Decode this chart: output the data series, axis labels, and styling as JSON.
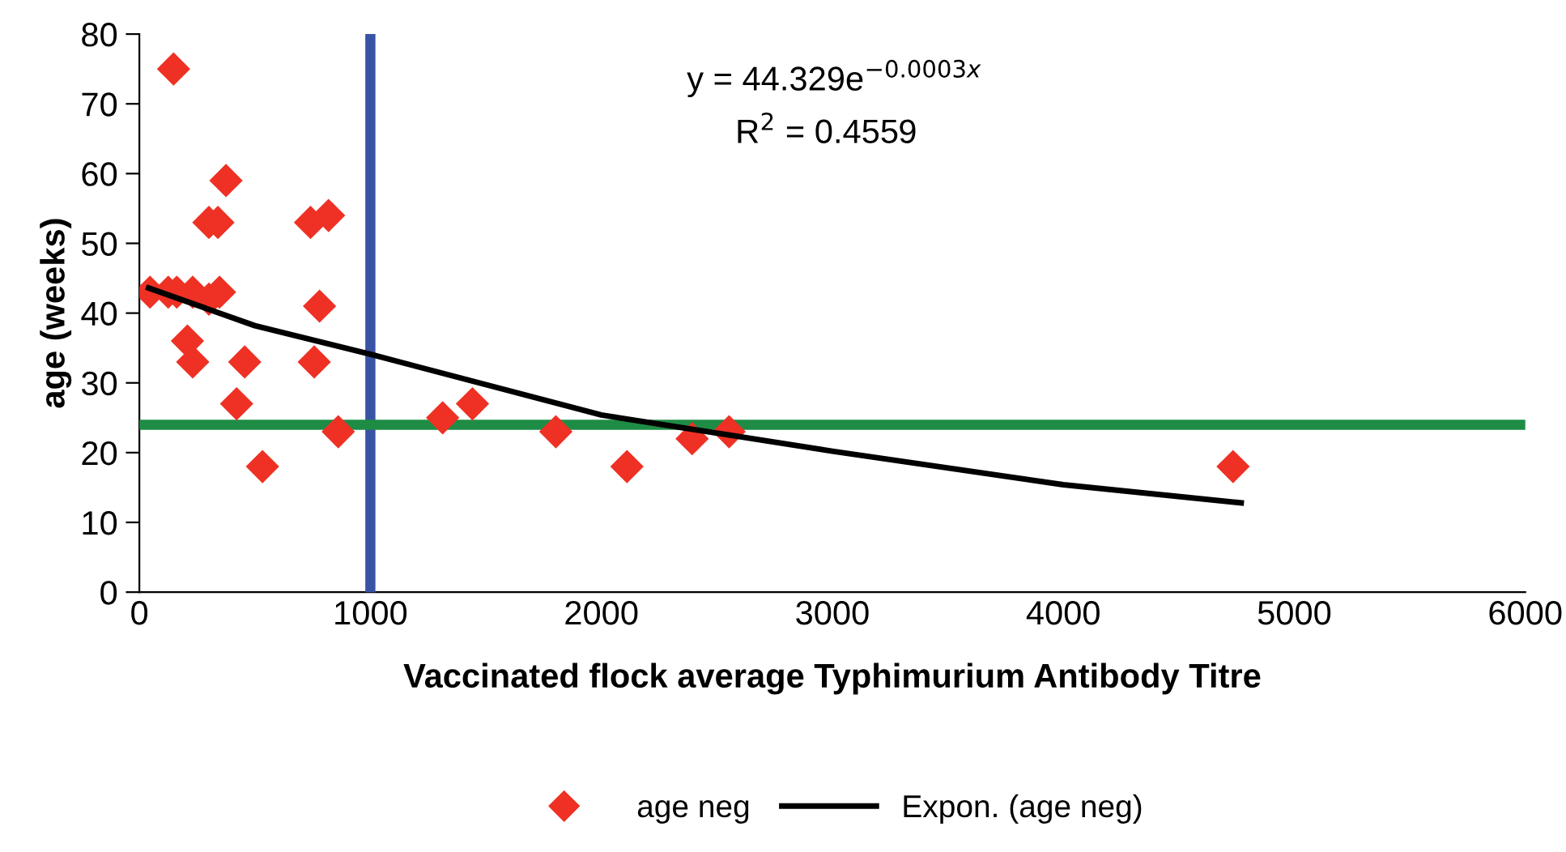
{
  "chart_data": {
    "type": "scatter",
    "xlabel": "Vaccinated flock average Typhimurium Antibody Titre",
    "ylabel": "age (weeks)",
    "xlim": [
      0,
      6000
    ],
    "xticks": [
      0,
      1000,
      2000,
      3000,
      4000,
      5000,
      6000
    ],
    "ylim": [
      0,
      80
    ],
    "yticks": [
      0,
      10,
      20,
      30,
      40,
      50,
      60,
      70,
      80
    ],
    "grid": false,
    "legend": "bottom",
    "marker": "diamond",
    "series": [
      {
        "name": "age neg",
        "color": "#ee3124",
        "x": [
          148,
          375,
          301,
          340,
          741,
          819,
          46,
          125,
          162,
          231,
          301,
          347,
          780,
          208,
          231,
          456,
          757,
          421,
          861,
          533,
          1313,
          1442,
          1803,
          2111,
          2393,
          2553,
          4735
        ],
        "values": [
          75,
          59,
          53,
          53,
          53,
          54,
          43,
          43,
          43,
          43,
          42,
          43,
          41,
          36,
          33,
          33,
          33,
          27,
          23,
          18,
          25,
          27,
          23,
          18,
          22,
          23,
          18
        ]
      },
      {
        "name": "Expon. (age neg)",
        "type": "line",
        "color": "#000000",
        "marker": "none",
        "line_style": "solid",
        "x": [
          40,
          500,
          1000,
          2000,
          3000,
          4000,
          4770
        ],
        "values": [
          43.6,
          38.2,
          34.1,
          25.4,
          20.2,
          15.4,
          12.8
        ]
      }
    ],
    "ref_lines": [
      {
        "axis": "x",
        "value": 1000,
        "color": "#3953a4"
      },
      {
        "axis": "y",
        "value": 24,
        "color": "#1e8c45"
      }
    ],
    "annotations": [
      "y = 44.329e$^{−0.0003x}$",
      "R$^{2}$ = 0.4559"
    ]
  }
}
